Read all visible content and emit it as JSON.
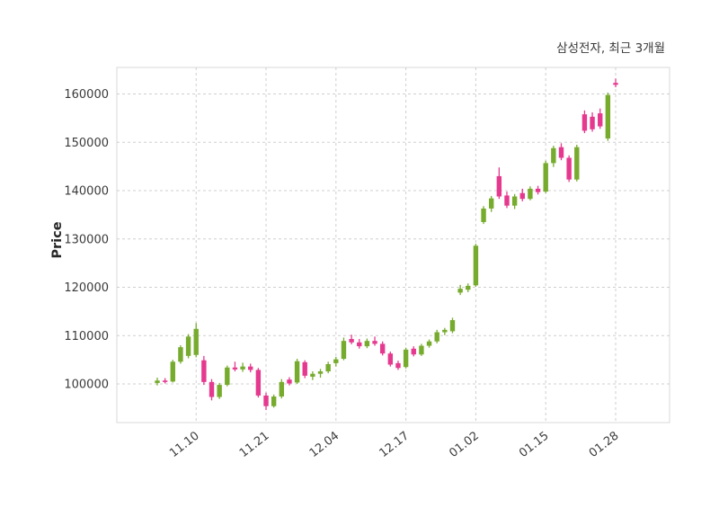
{
  "figure": {
    "colors": {
      "up": "#77ab2e",
      "down": "#e5398f",
      "grid": "#cfcfcf",
      "spine": "#d9d9d9",
      "text": "#3a3a3a",
      "background": "#ffffff",
      "plot_bg": "#ffffff"
    }
  },
  "chart_data": {
    "type": "candlestick",
    "title": "삼성전자, 최근 3개월",
    "ylabel": "Price",
    "xlabel": "",
    "grid": "dashed",
    "legend": "none",
    "ylim": [
      92000,
      165500
    ],
    "y_ticks": [
      100000,
      110000,
      120000,
      130000,
      140000,
      150000,
      160000
    ],
    "x_tick_labels": [
      "11.10",
      "11.21",
      "12.04",
      "12.17",
      "01.02",
      "01.15",
      "01.28"
    ],
    "x_tick_indices": [
      5,
      14,
      23,
      32,
      41,
      50,
      59
    ],
    "series": [
      {
        "date": "11.03",
        "open": 100200,
        "high": 101300,
        "low": 99700,
        "close": 100700
      },
      {
        "date": "11.04",
        "open": 100700,
        "high": 101200,
        "low": 100100,
        "close": 100400
      },
      {
        "date": "11.05",
        "open": 100500,
        "high": 105000,
        "low": 100300,
        "close": 104600
      },
      {
        "date": "11.06",
        "open": 104600,
        "high": 108000,
        "low": 104200,
        "close": 107600
      },
      {
        "date": "11.07",
        "open": 105800,
        "high": 110300,
        "low": 105300,
        "close": 109800
      },
      {
        "date": "11.10",
        "open": 106000,
        "high": 112600,
        "low": 105500,
        "close": 111400
      },
      {
        "date": "11.11",
        "open": 104900,
        "high": 105800,
        "low": 99800,
        "close": 100400
      },
      {
        "date": "11.12",
        "open": 100400,
        "high": 101000,
        "low": 96600,
        "close": 97300
      },
      {
        "date": "11.13",
        "open": 97300,
        "high": 100200,
        "low": 96900,
        "close": 99800
      },
      {
        "date": "11.14",
        "open": 99800,
        "high": 103800,
        "low": 99500,
        "close": 103400
      },
      {
        "date": "11.17",
        "open": 103400,
        "high": 104600,
        "low": 102600,
        "close": 103000
      },
      {
        "date": "11.18",
        "open": 103000,
        "high": 104400,
        "low": 102500,
        "close": 103600
      },
      {
        "date": "11.19",
        "open": 103600,
        "high": 104200,
        "low": 102400,
        "close": 102900
      },
      {
        "date": "11.20",
        "open": 102900,
        "high": 103300,
        "low": 97200,
        "close": 97600
      },
      {
        "date": "11.21",
        "open": 97600,
        "high": 98200,
        "low": 94600,
        "close": 95400
      },
      {
        "date": "11.24",
        "open": 95400,
        "high": 97800,
        "low": 95100,
        "close": 97400
      },
      {
        "date": "11.25",
        "open": 97400,
        "high": 101000,
        "low": 97000,
        "close": 100400
      },
      {
        "date": "11.26",
        "open": 100900,
        "high": 101400,
        "low": 99700,
        "close": 100100
      },
      {
        "date": "11.27",
        "open": 100300,
        "high": 105200,
        "low": 100000,
        "close": 104700
      },
      {
        "date": "11.28",
        "open": 104500,
        "high": 104900,
        "low": 101200,
        "close": 101700
      },
      {
        "date": "12.01",
        "open": 101500,
        "high": 102600,
        "low": 100800,
        "close": 102100
      },
      {
        "date": "12.02",
        "open": 102100,
        "high": 103100,
        "low": 101300,
        "close": 102600
      },
      {
        "date": "12.03",
        "open": 102600,
        "high": 104600,
        "low": 102200,
        "close": 104100
      },
      {
        "date": "12.04",
        "open": 104300,
        "high": 105600,
        "low": 103600,
        "close": 105100
      },
      {
        "date": "12.05",
        "open": 105200,
        "high": 109600,
        "low": 104900,
        "close": 108900
      },
      {
        "date": "12.08",
        "open": 109300,
        "high": 110200,
        "low": 108200,
        "close": 108600
      },
      {
        "date": "12.09",
        "open": 108600,
        "high": 109300,
        "low": 107300,
        "close": 107800
      },
      {
        "date": "12.10",
        "open": 107800,
        "high": 109400,
        "low": 107400,
        "close": 108900
      },
      {
        "date": "12.11",
        "open": 108900,
        "high": 109800,
        "low": 107900,
        "close": 108300
      },
      {
        "date": "12.12",
        "open": 108300,
        "high": 108800,
        "low": 105900,
        "close": 106300
      },
      {
        "date": "12.15",
        "open": 106300,
        "high": 106700,
        "low": 103600,
        "close": 104000
      },
      {
        "date": "12.16",
        "open": 104300,
        "high": 104800,
        "low": 102900,
        "close": 103300
      },
      {
        "date": "12.17",
        "open": 103500,
        "high": 107500,
        "low": 103200,
        "close": 107100
      },
      {
        "date": "12.18",
        "open": 107300,
        "high": 107800,
        "low": 105700,
        "close": 106100
      },
      {
        "date": "12.19",
        "open": 106100,
        "high": 108300,
        "low": 105800,
        "close": 107900
      },
      {
        "date": "12.22",
        "open": 107900,
        "high": 109200,
        "low": 107500,
        "close": 108800
      },
      {
        "date": "12.23",
        "open": 108800,
        "high": 111200,
        "low": 108400,
        "close": 110700
      },
      {
        "date": "12.24",
        "open": 110700,
        "high": 111600,
        "low": 110100,
        "close": 111200
      },
      {
        "date": "12.26",
        "open": 110900,
        "high": 113700,
        "low": 110500,
        "close": 113200
      },
      {
        "date": "12.29",
        "open": 118900,
        "high": 120500,
        "low": 118400,
        "close": 119700
      },
      {
        "date": "12.30",
        "open": 119500,
        "high": 120800,
        "low": 119000,
        "close": 120300
      },
      {
        "date": "01.02",
        "open": 120400,
        "high": 129000,
        "low": 120100,
        "close": 128600
      },
      {
        "date": "01.05",
        "open": 133500,
        "high": 136800,
        "low": 133100,
        "close": 136300
      },
      {
        "date": "01.06",
        "open": 136300,
        "high": 138900,
        "low": 135600,
        "close": 138400
      },
      {
        "date": "01.07",
        "open": 143000,
        "high": 144800,
        "low": 138300,
        "close": 138800
      },
      {
        "date": "01.08",
        "open": 139000,
        "high": 139800,
        "low": 136400,
        "close": 136900
      },
      {
        "date": "01.09",
        "open": 136900,
        "high": 139300,
        "low": 136200,
        "close": 138800
      },
      {
        "date": "01.12",
        "open": 139500,
        "high": 140400,
        "low": 137800,
        "close": 138300
      },
      {
        "date": "01.13",
        "open": 138300,
        "high": 140900,
        "low": 138000,
        "close": 140400
      },
      {
        "date": "01.14",
        "open": 140400,
        "high": 141000,
        "low": 139200,
        "close": 139700
      },
      {
        "date": "01.15",
        "open": 139800,
        "high": 146200,
        "low": 139500,
        "close": 145700
      },
      {
        "date": "01.16",
        "open": 145700,
        "high": 149300,
        "low": 144900,
        "close": 148800
      },
      {
        "date": "01.19",
        "open": 149000,
        "high": 149800,
        "low": 146300,
        "close": 146800
      },
      {
        "date": "01.20",
        "open": 146800,
        "high": 147300,
        "low": 141800,
        "close": 142300
      },
      {
        "date": "01.21",
        "open": 142300,
        "high": 149500,
        "low": 141900,
        "close": 149000
      },
      {
        "date": "01.22",
        "open": 155800,
        "high": 156600,
        "low": 151900,
        "close": 152400
      },
      {
        "date": "01.23",
        "open": 155300,
        "high": 156200,
        "low": 152200,
        "close": 152700
      },
      {
        "date": "01.26",
        "open": 156000,
        "high": 157000,
        "low": 152800,
        "close": 153300
      },
      {
        "date": "01.27",
        "open": 150800,
        "high": 160300,
        "low": 150300,
        "close": 159800
      },
      {
        "date": "01.28",
        "open": 162300,
        "high": 163200,
        "low": 161400,
        "close": 161900
      }
    ]
  }
}
